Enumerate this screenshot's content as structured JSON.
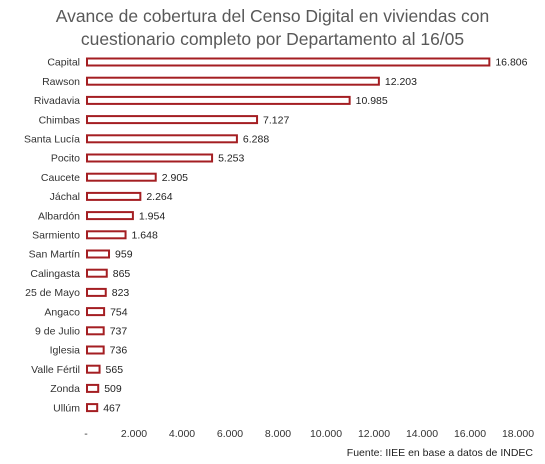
{
  "title": {
    "line1": "Avance de cobertura del Censo Digital en viviendas con",
    "line2": "cuestionario completo por Departamento al 16/05"
  },
  "source": "Fuente:  IIEE en base a datos de INDEC",
  "colors": {
    "bar_stroke": "#A41E22",
    "bar_fill": "#ffffff",
    "text": "#333333",
    "title": "#595959"
  },
  "chart_data": {
    "type": "bar",
    "orientation": "horizontal",
    "categories": [
      "Capital",
      "Rawson",
      "Rivadavia",
      "Chimbas",
      "Santa Lucía",
      "Pocito",
      "Caucete",
      "Jáchal",
      "Albardón",
      "Sarmiento",
      "San Martín",
      "Calingasta",
      "25 de Mayo",
      "Angaco",
      "9 de Julio",
      "Iglesia",
      "Valle Fértil",
      "Zonda",
      "Ullúm"
    ],
    "values": [
      16806,
      12203,
      10985,
      7127,
      6288,
      5253,
      2905,
      2264,
      1954,
      1648,
      959,
      865,
      823,
      754,
      737,
      736,
      565,
      509,
      467
    ],
    "value_labels": [
      "16.806",
      "12.203",
      "10.985",
      "7.127",
      "6.288",
      "5.253",
      "2.905",
      "2.264",
      "1.954",
      "1.648",
      "959",
      "865",
      "823",
      "754",
      "737",
      "736",
      "565",
      "509",
      "467"
    ],
    "xlim": [
      0,
      18000
    ],
    "xticks": [
      0,
      2000,
      4000,
      6000,
      8000,
      10000,
      12000,
      14000,
      16000,
      18000
    ],
    "xtick_labels": [
      "-",
      "2.000",
      "4.000",
      "6.000",
      "8.000",
      "10.000",
      "12.000",
      "14.000",
      "16.000",
      "18.000"
    ],
    "grid": false,
    "legend": "none"
  }
}
